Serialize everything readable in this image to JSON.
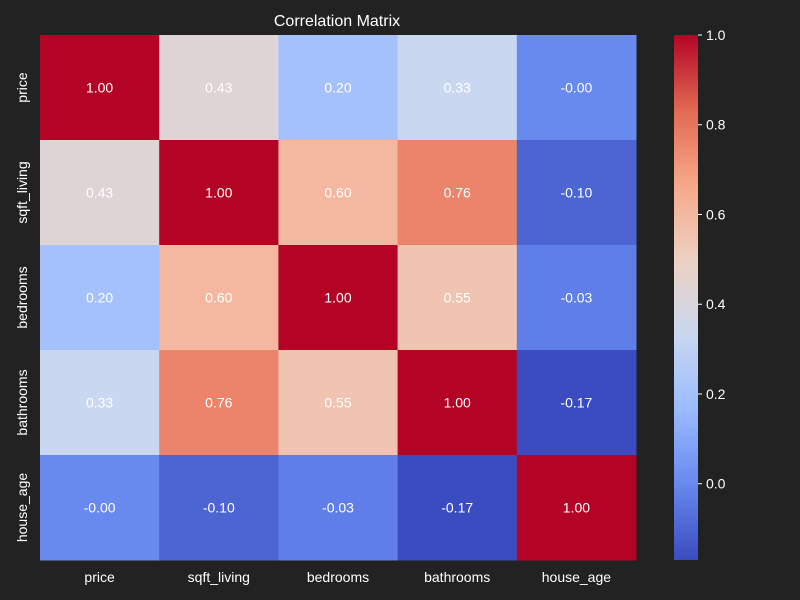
{
  "chart_data": {
    "type": "heatmap",
    "title": "Correlation Matrix",
    "xlabel": "",
    "ylabel": "",
    "x_categories": [
      "price",
      "sqft_living",
      "bedrooms",
      "bathrooms",
      "house_age"
    ],
    "y_categories": [
      "price",
      "sqft_living",
      "bedrooms",
      "bathrooms",
      "house_age"
    ],
    "values": [
      [
        1.0,
        0.43,
        0.2,
        0.33,
        -0.0
      ],
      [
        0.43,
        1.0,
        0.6,
        0.76,
        -0.1
      ],
      [
        0.2,
        0.6,
        1.0,
        0.55,
        -0.03
      ],
      [
        0.33,
        0.76,
        0.55,
        1.0,
        -0.17
      ],
      [
        -0.0,
        -0.1,
        -0.03,
        -0.17,
        1.0
      ]
    ],
    "value_labels": [
      [
        "1.00",
        "0.43",
        "0.20",
        "0.33",
        "-0.00"
      ],
      [
        "0.43",
        "1.00",
        "0.60",
        "0.76",
        "-0.10"
      ],
      [
        "0.20",
        "0.60",
        "1.00",
        "0.55",
        "-0.03"
      ],
      [
        "0.33",
        "0.76",
        "0.55",
        "1.00",
        "-0.17"
      ],
      [
        "-0.00",
        "-0.10",
        "-0.03",
        "-0.17",
        "1.00"
      ]
    ],
    "colormap": "coolwarm",
    "color_range": [
      -0.17,
      1.0
    ],
    "colorbar_ticks": [
      0.0,
      0.2,
      0.4,
      0.6,
      0.8,
      1.0
    ],
    "colorbar_tick_labels": [
      "0.0",
      "0.2",
      "0.4",
      "0.6",
      "0.8",
      "1.0"
    ],
    "legend": "colorbar-right"
  },
  "colors": {
    "background": "#222222",
    "text": "#ffffff",
    "coolwarm_stops": [
      "#3b4cc0",
      "#6788ee",
      "#9abbff",
      "#c9d7f0",
      "#edd1c2",
      "#f7a889",
      "#e26952",
      "#b40426"
    ]
  }
}
